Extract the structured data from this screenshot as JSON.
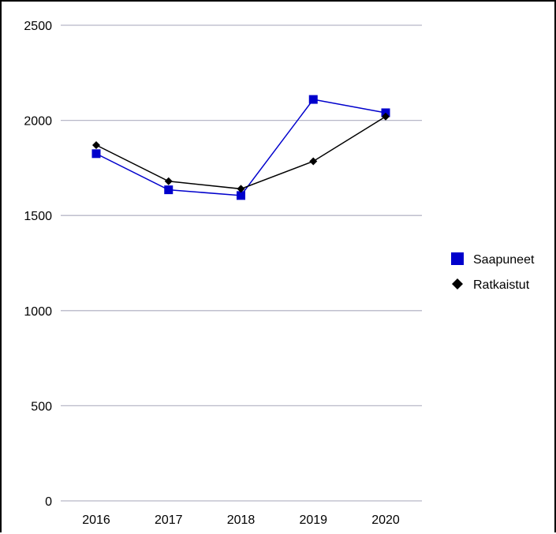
{
  "chart_data": {
    "type": "line",
    "categories": [
      "2016",
      "2017",
      "2018",
      "2019",
      "2020"
    ],
    "series": [
      {
        "name": "Saapuneet",
        "values": [
          1825,
          1635,
          1605,
          2110,
          2040
        ],
        "color": "#0000cc",
        "marker": "square"
      },
      {
        "name": "Ratkaistut",
        "values": [
          1870,
          1680,
          1640,
          1785,
          2020
        ],
        "color": "#000000",
        "marker": "diamond"
      }
    ],
    "yticks": [
      "0",
      "500",
      "1000",
      "1500",
      "2000",
      "2500"
    ],
    "ylim": [
      0,
      2500
    ],
    "grid": true,
    "legend": "right",
    "gridline_color": "#b8b8c8"
  }
}
